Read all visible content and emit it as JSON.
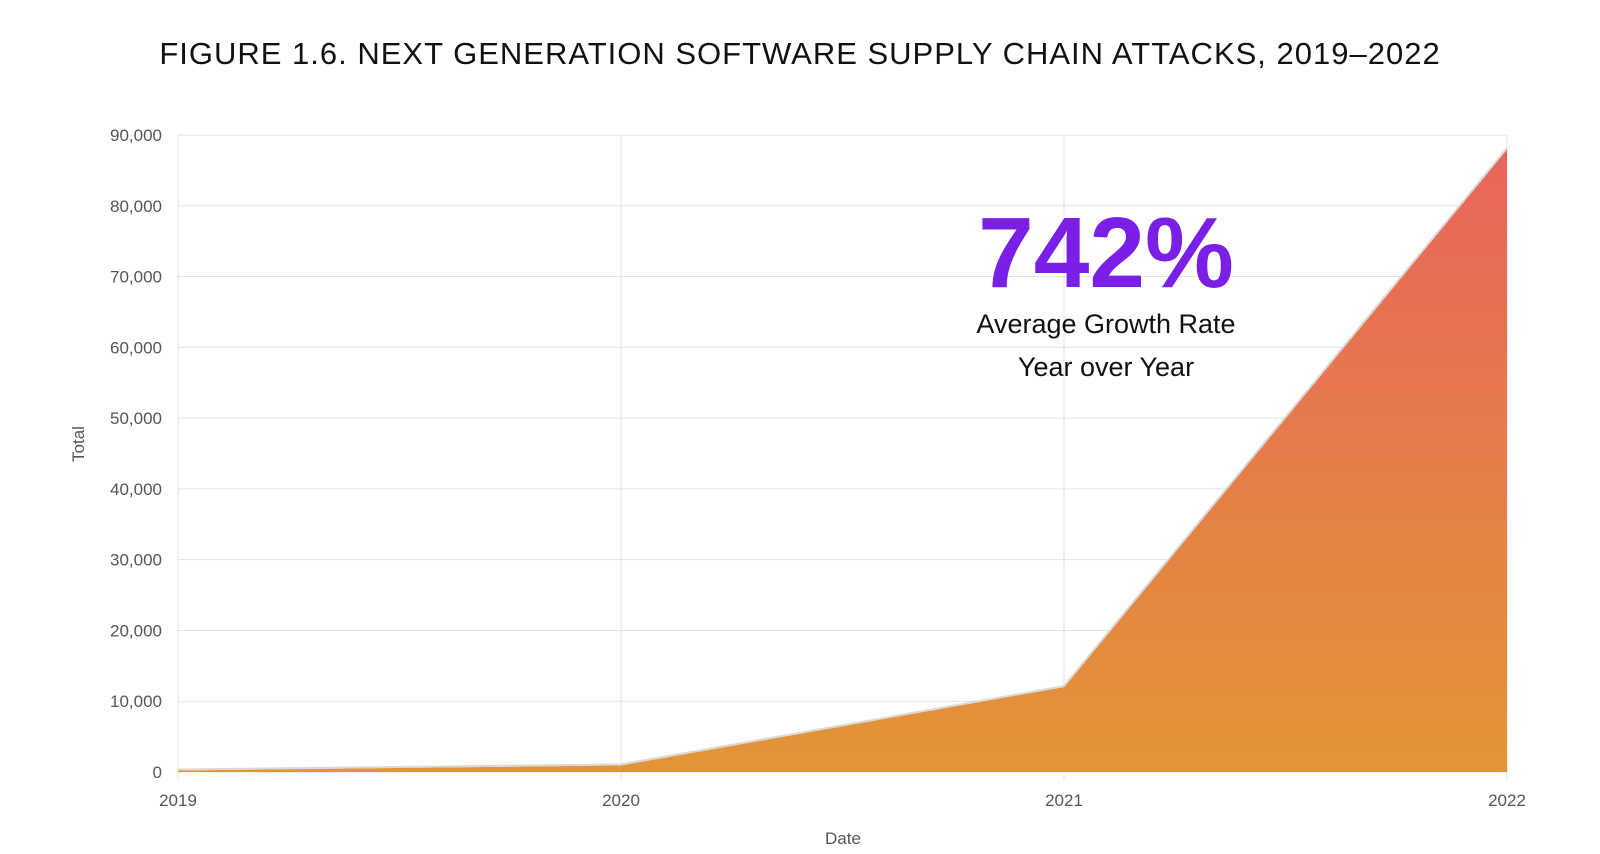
{
  "figure_title": "FIGURE 1.6. NEXT GENERATION SOFTWARE SUPPLY CHAIN ATTACKS, 2019–2022",
  "colors": {
    "area_top": "#e8655d",
    "area_bottom": "#e39535",
    "accent": "#7a1fe6",
    "grid": "#e3e3e3",
    "line": "#d9d9d9"
  },
  "chart_data": {
    "type": "area",
    "title": "FIGURE 1.6. NEXT GENERATION SOFTWARE SUPPLY CHAIN ATTACKS, 2019–2022",
    "xlabel": "Date",
    "ylabel": "Total",
    "categories": [
      "2019",
      "2020",
      "2021",
      "2022"
    ],
    "values": [
      216,
      929,
      12000,
      88000
    ],
    "ylim": [
      0,
      90000
    ],
    "yticks": [
      0,
      10000,
      20000,
      30000,
      40000,
      50000,
      60000,
      70000,
      80000,
      90000
    ],
    "ytick_labels": [
      "0",
      "10,000",
      "20,000",
      "30,000",
      "40,000",
      "50,000",
      "60,000",
      "70,000",
      "80,000",
      "90,000"
    ],
    "grid": true,
    "annotation": {
      "value": "742%",
      "line1": "Average Growth Rate",
      "line2": "Year over Year"
    }
  }
}
